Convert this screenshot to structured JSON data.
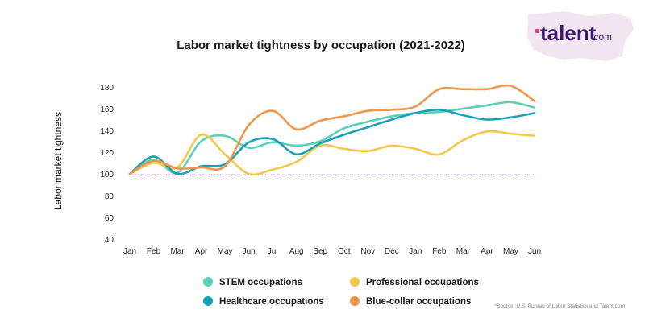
{
  "branding": {
    "logo_text": "talent",
    "logo_suffix": ".com",
    "accent_color": "#e03c7a",
    "logo_color": "#3a1a6e",
    "map_color": "#f3e6f1"
  },
  "source_note": "*Source: U.S. Bureau of Labor Statistics and Talent.com",
  "chart_data": {
    "type": "line",
    "title": "Labor market tightness by occupation (2021-2022)",
    "xlabel": "",
    "ylabel": "Labor market tightness",
    "categories": [
      "Jan",
      "Feb",
      "Mar",
      "Apr",
      "May",
      "Jun",
      "Jul",
      "Aug",
      "Sep",
      "Oct",
      "Nov",
      "Dec",
      "Jan",
      "Feb",
      "Mar",
      "Apr",
      "May",
      "Jun"
    ],
    "ylim": [
      40,
      180
    ],
    "yticks": [
      40,
      60,
      80,
      100,
      120,
      140,
      160,
      180
    ],
    "reference_line": {
      "value": 99,
      "color": "#8a4fa8",
      "style": "dashed"
    },
    "grid": false,
    "legend_position": "bottom",
    "series": [
      {
        "name": "STEM occupations",
        "color": "#5ccfb8",
        "values": [
          100,
          113,
          101,
          130,
          135,
          124,
          129,
          126,
          130,
          142,
          148,
          153,
          156,
          157,
          160,
          163,
          166,
          161
        ]
      },
      {
        "name": "Professional occupations",
        "color": "#f2c94c",
        "values": [
          100,
          110,
          106,
          136,
          118,
          100,
          104,
          111,
          126,
          123,
          121,
          126,
          123,
          118,
          131,
          139,
          137,
          135
        ]
      },
      {
        "name": "Healthcare occupations",
        "color": "#17a2b8",
        "values": [
          100,
          116,
          100,
          107,
          109,
          129,
          132,
          118,
          128,
          136,
          143,
          150,
          156,
          159,
          154,
          150,
          152,
          156
        ]
      },
      {
        "name": "Blue-collar occupations",
        "color": "#f0964a",
        "values": [
          100,
          112,
          105,
          106,
          107,
          145,
          158,
          141,
          149,
          153,
          158,
          159,
          162,
          178,
          178,
          178,
          181,
          167
        ]
      }
    ]
  }
}
